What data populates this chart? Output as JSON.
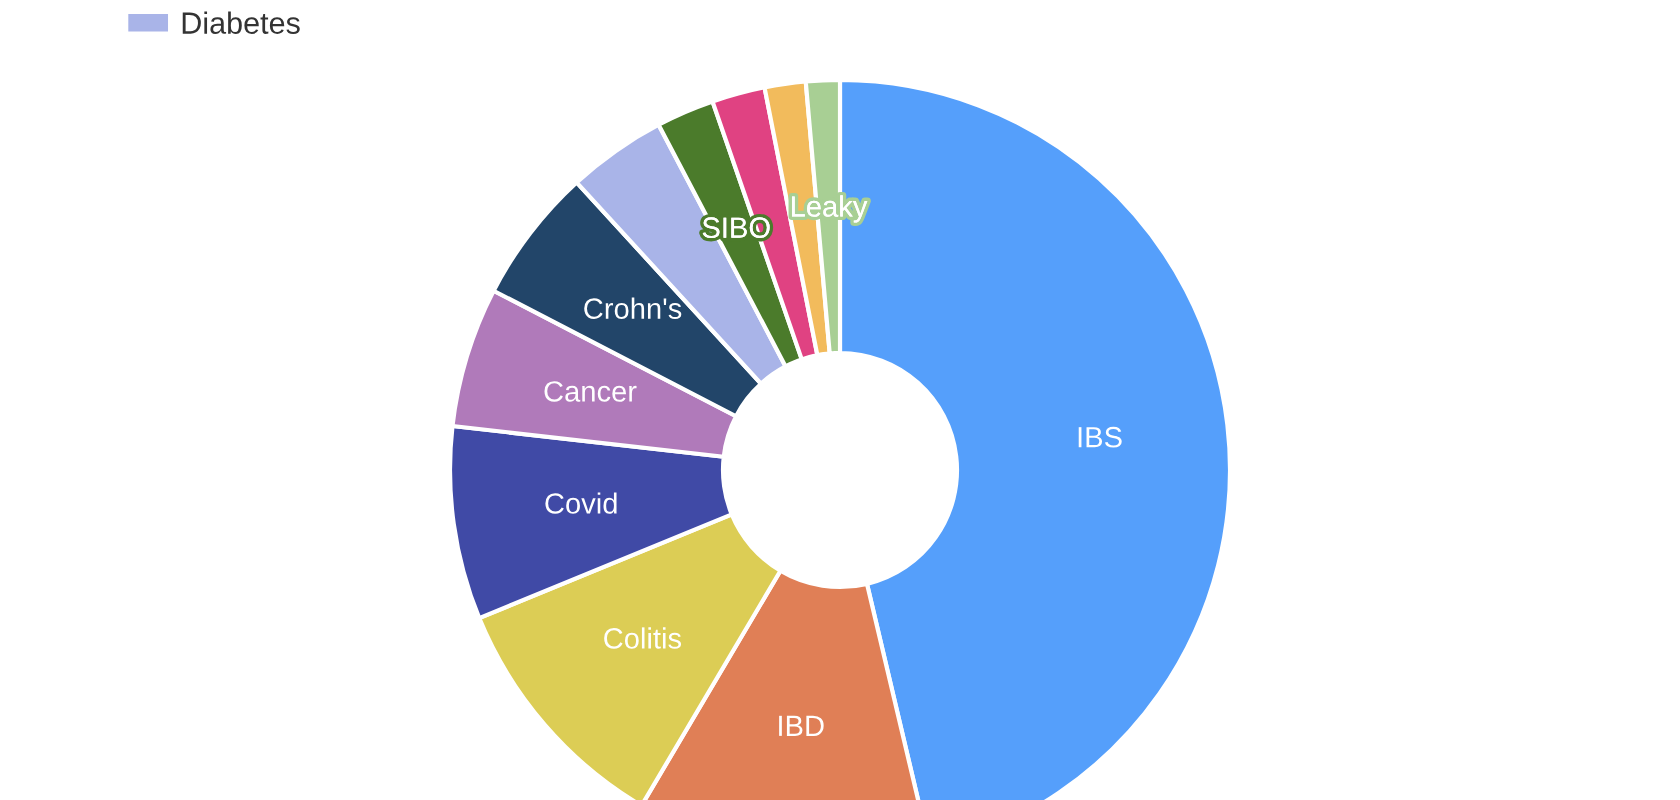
{
  "chart_data": {
    "type": "donut",
    "categories": [
      "IBS",
      "IBD",
      "Colitis",
      "Covid",
      "Cancer",
      "Crohn's",
      "Diabetes",
      "SIBO",
      null,
      null,
      "Leaky"
    ],
    "values": [
      46.3,
      12.2,
      10.3,
      8.0,
      5.8,
      5.6,
      4.1,
      2.4,
      2.2,
      1.7,
      1.4
    ],
    "colors": [
      "#559ffb",
      "#e07f56",
      "#dccd55",
      "#404aa6",
      "#b07aba",
      "#224569",
      "#a9b4e8",
      "#4b7b2b",
      "#e04282",
      "#f2bb5c",
      "#a8cf94"
    ],
    "legend": "top left"
  }
}
